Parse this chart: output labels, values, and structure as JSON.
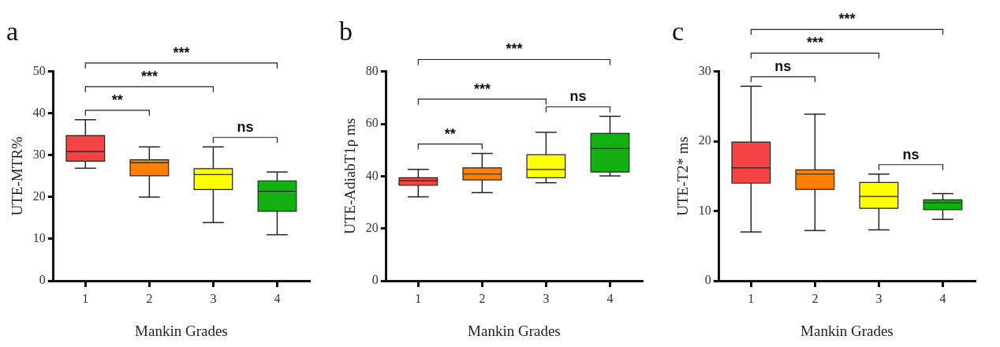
{
  "chart_data": [
    {
      "type": "box",
      "title": "a",
      "xlabel": "Mankin Grades",
      "ylabel": "UTE-MTR%",
      "categories": [
        "1",
        "2",
        "3",
        "4"
      ],
      "colors": [
        "#f44343",
        "#ff8000",
        "#ffff00",
        "#12b012"
      ],
      "boxes": [
        {
          "low": 26.9,
          "q1": 28.6,
          "median": 30.9,
          "q3": 34.7,
          "high": 38.5
        },
        {
          "low": 20,
          "q1": 25.1,
          "median": 28.2,
          "q3": 28.9,
          "high": 32
        },
        {
          "low": 13.9,
          "q1": 21.8,
          "median": 25.4,
          "q3": 26.8,
          "high": 32
        },
        {
          "low": 11,
          "q1": 16.6,
          "median": 21.4,
          "q3": 23.9,
          "high": 26
        }
      ],
      "ylim": [
        0,
        50
      ],
      "yticks": [
        0,
        10,
        20,
        30,
        40,
        50
      ],
      "annotations": [
        "**",
        "***",
        "***",
        "ns"
      ]
    },
    {
      "type": "box",
      "title": "b",
      "xlabel": "Mankin Grades",
      "ylabel": "UTE-AdiabT1ρ ms",
      "categories": [
        "1",
        "2",
        "3",
        "4"
      ],
      "colors": [
        "#f44343",
        "#ff8000",
        "#ffff00",
        "#12b012"
      ],
      "boxes": [
        {
          "low": 32.1,
          "q1": 36.5,
          "median": 38.3,
          "q3": 39.4,
          "high": 42.6
        },
        {
          "low": 33.7,
          "q1": 38.6,
          "median": 40.8,
          "q3": 43.2,
          "high": 48.7
        },
        {
          "low": 37.5,
          "q1": 39.4,
          "median": 42.6,
          "q3": 48.2,
          "high": 56.8
        },
        {
          "low": 40.1,
          "q1": 41.6,
          "median": 50.6,
          "q3": 56.4,
          "high": 62.9
        }
      ],
      "ylim": [
        0,
        80
      ],
      "yticks": [
        0,
        20,
        40,
        60,
        80
      ],
      "annotations": [
        "**",
        "***",
        "***",
        "ns"
      ]
    },
    {
      "type": "box",
      "title": "c",
      "xlabel": "Mankin Grades",
      "ylabel": "UTE-T2* ms",
      "categories": [
        "1",
        "2",
        "3",
        "4"
      ],
      "colors": [
        "#f44343",
        "#ff8000",
        "#ffff00",
        "#12b012"
      ],
      "boxes": [
        {
          "low": 7.0,
          "q1": 14.0,
          "median": 16.2,
          "q3": 19.9,
          "high": 27.9
        },
        {
          "low": 7.2,
          "q1": 13.1,
          "median": 15.3,
          "q3": 15.9,
          "high": 23.9
        },
        {
          "low": 7.3,
          "q1": 10.4,
          "median": 12.1,
          "q3": 14.1,
          "high": 15.3
        },
        {
          "low": 8.8,
          "q1": 10.2,
          "median": 11.2,
          "q3": 11.6,
          "high": 12.5
        }
      ],
      "ylim": [
        0,
        30
      ],
      "yticks": [
        0,
        10,
        20,
        30
      ],
      "annotations": [
        "ns",
        "***",
        "***",
        "ns"
      ]
    }
  ]
}
